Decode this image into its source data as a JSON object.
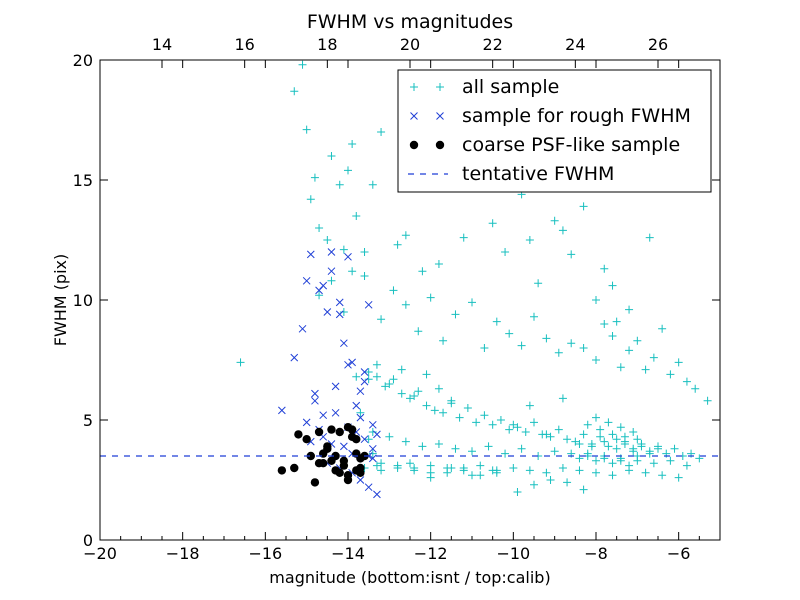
{
  "chart_data": {
    "type": "scatter",
    "title": "FWHM vs magnitudes",
    "xlabel": "magnitude (bottom:isnt / top:calib)",
    "ylabel": "FWHM (pix)",
    "xlim": [
      -20,
      -5
    ],
    "ylim": [
      0,
      20
    ],
    "top_xlim": [
      12.5,
      27.5
    ],
    "xticks": [
      -20,
      -18,
      -16,
      -14,
      -12,
      -10,
      -8,
      -6
    ],
    "xtick_labels": [
      "−20",
      "−18",
      "−16",
      "−14",
      "−12",
      "−10",
      "−8",
      "−6"
    ],
    "top_xticks": [
      14,
      16,
      18,
      20,
      22,
      24,
      26
    ],
    "top_xtick_labels": [
      "14",
      "16",
      "18",
      "20",
      "22",
      "24",
      "26"
    ],
    "yticks": [
      0,
      5,
      10,
      15,
      20
    ],
    "ytick_labels": [
      "0",
      "5",
      "10",
      "15",
      "20"
    ],
    "legend_position": "top-right",
    "colors": {
      "all": "#17bfbf",
      "rough": "#1f3fd6",
      "coarse": "#000000",
      "tentative": "#1f3fd6"
    },
    "series": [
      {
        "name": "all sample",
        "marker": "plus",
        "x": [
          -16.6,
          -15.3,
          -15.1,
          -15.0,
          -14.9,
          -14.8,
          -14.7,
          -14.5,
          -14.4,
          -14.2,
          -14.1,
          -14.0,
          -13.9,
          -13.8,
          -13.6,
          -13.4,
          -13.2,
          -12.8,
          -12.6,
          -12.2,
          -11.8,
          -11.2,
          -10.5,
          -10.2,
          -9.8,
          -9.6,
          -9.4,
          -9.0,
          -8.8,
          -8.6,
          -8.3,
          -8.0,
          -7.8,
          -7.6,
          -7.5,
          -7.2,
          -6.7,
          -14.7,
          -14.4,
          -14.1,
          -13.9,
          -13.6,
          -13.2,
          -12.9,
          -12.6,
          -12.3,
          -12.0,
          -11.7,
          -11.4,
          -11.0,
          -10.7,
          -10.4,
          -10.1,
          -9.8,
          -9.5,
          -9.2,
          -8.9,
          -8.6,
          -8.3,
          -8.0,
          -7.8,
          -7.6,
          -7.4,
          -7.2,
          -7.0,
          -6.8,
          -6.6,
          -6.4,
          -6.2,
          -6.0,
          -5.8,
          -5.6,
          -5.3,
          -13.5,
          -13.3,
          -13.1,
          -12.9,
          -12.7,
          -12.5,
          -12.3,
          -12.1,
          -11.9,
          -11.7,
          -11.5,
          -11.3,
          -11.1,
          -10.9,
          -10.7,
          -10.5,
          -10.3,
          -10.1,
          -9.9,
          -9.7,
          -9.5,
          -9.3,
          -9.1,
          -8.9,
          -8.7,
          -8.5,
          -8.3,
          -8.1,
          -7.9,
          -7.7,
          -7.5,
          -7.3,
          -7.1,
          -6.9,
          -6.7,
          -6.5,
          -6.3,
          -6.1,
          -5.9,
          -5.7,
          -5.5,
          -13.4,
          -13.0,
          -12.6,
          -12.2,
          -11.8,
          -11.4,
          -11.0,
          -10.6,
          -10.2,
          -9.8,
          -9.4,
          -9.0,
          -8.6,
          -8.2,
          -7.8,
          -7.4,
          -7.0,
          -6.6,
          -6.2,
          -5.8,
          -13.6,
          -13.2,
          -12.8,
          -12.4,
          -12.0,
          -11.6,
          -11.2,
          -10.8,
          -10.4,
          -10.0,
          -9.6,
          -9.2,
          -8.8,
          -8.4,
          -8.0,
          -7.6,
          -7.2,
          -6.8,
          -6.4,
          -6.0,
          -8.2,
          -8.0,
          -7.9,
          -7.7,
          -7.6,
          -7.4,
          -7.3,
          -7.1,
          -7.0,
          -6.9,
          -8.1,
          -7.8,
          -7.5,
          -7.3,
          -7.1,
          -6.9,
          -6.7,
          -6.5,
          -8.4,
          -8.2,
          -8.0,
          -7.8,
          -7.6,
          -7.4,
          -7.2,
          -7.0,
          -13.2,
          -12.8,
          -12.4,
          -12.0,
          -11.6,
          -11.2,
          -10.8,
          -10.4,
          -13.5,
          -13.3,
          -13.0,
          -12.7,
          -12.4,
          -12.1,
          -11.8,
          -11.5,
          -10.0,
          -9.6,
          -9.2,
          -8.8,
          -8.4,
          -9.9,
          -9.5,
          -9.1,
          -8.7,
          -8.3,
          -12.5,
          -12.0,
          -11.5,
          -11.0,
          -10.5,
          -13.8,
          -13.7,
          -13.5,
          -13.4,
          -13.3
        ],
        "y": [
          7.4,
          18.7,
          19.8,
          17.1,
          14.2,
          15.1,
          13.0,
          12.5,
          16.0,
          14.8,
          12.1,
          15.4,
          16.5,
          13.5,
          11.0,
          14.8,
          17.0,
          12.3,
          12.7,
          11.2,
          11.5,
          12.6,
          13.2,
          12.0,
          14.4,
          12.5,
          10.7,
          13.3,
          12.9,
          11.9,
          13.9,
          10.0,
          11.3,
          10.6,
          9.1,
          9.6,
          12.6,
          10.2,
          10.8,
          9.5,
          11.2,
          12.0,
          9.2,
          10.4,
          9.8,
          8.7,
          10.1,
          8.3,
          9.4,
          9.9,
          8.0,
          9.1,
          8.6,
          8.1,
          9.3,
          8.4,
          7.8,
          8.2,
          8.0,
          7.5,
          9.0,
          8.5,
          7.2,
          7.9,
          8.3,
          7.1,
          7.6,
          8.8,
          6.9,
          7.4,
          6.6,
          6.3,
          5.8,
          7.0,
          6.8,
          6.4,
          6.7,
          6.1,
          5.9,
          6.2,
          5.6,
          5.4,
          5.3,
          5.7,
          5.1,
          5.5,
          4.9,
          5.2,
          4.8,
          5.0,
          4.6,
          4.7,
          4.5,
          4.9,
          4.4,
          4.3,
          4.6,
          4.2,
          4.1,
          4.4,
          4.0,
          4.3,
          3.9,
          4.2,
          4.1,
          3.8,
          4.0,
          3.7,
          3.9,
          3.6,
          3.8,
          3.5,
          3.6,
          3.4,
          4.5,
          4.3,
          4.1,
          3.9,
          4.0,
          3.8,
          3.7,
          3.9,
          3.6,
          3.8,
          3.5,
          3.7,
          3.6,
          3.5,
          3.4,
          3.3,
          3.5,
          3.2,
          3.3,
          3.1,
          3.0,
          2.9,
          3.1,
          3.0,
          2.8,
          3.0,
          2.9,
          3.1,
          2.8,
          3.0,
          2.9,
          2.8,
          3.0,
          2.9,
          2.8,
          2.7,
          2.9,
          2.8,
          2.7,
          2.6,
          4.8,
          5.1,
          4.6,
          4.9,
          4.4,
          4.7,
          4.3,
          4.5,
          4.2,
          4.0,
          3.9,
          4.1,
          3.8,
          4.0,
          3.7,
          3.9,
          3.6,
          3.8,
          3.4,
          3.6,
          3.3,
          3.5,
          3.2,
          3.4,
          3.1,
          3.3,
          3.2,
          3.0,
          2.9,
          3.1,
          2.8,
          3.0,
          2.7,
          2.9,
          6.7,
          7.3,
          6.5,
          7.1,
          6.0,
          6.9,
          6.3,
          5.8,
          4.8,
          5.6,
          4.4,
          5.9,
          4.0,
          2.0,
          2.3,
          2.5,
          2.4,
          2.1,
          3.2,
          2.6,
          3.0,
          2.7,
          2.9,
          6.8,
          5.3,
          4.2,
          3.6,
          3.1
        ],
        "color": "#17bfbf"
      },
      {
        "name": "sample for rough FWHM",
        "marker": "x",
        "x": [
          -15.6,
          -15.3,
          -15.1,
          -15.0,
          -14.9,
          -14.8,
          -14.7,
          -14.6,
          -14.5,
          -14.4,
          -14.3,
          -14.2,
          -14.1,
          -14.0,
          -13.9,
          -13.8,
          -13.7,
          -13.6,
          -13.5,
          -13.4,
          -13.3,
          -15.0,
          -14.8,
          -14.6,
          -14.4,
          -14.2,
          -14.0,
          -13.8,
          -13.6,
          -13.4,
          -14.9,
          -14.6,
          -14.3,
          -14.0,
          -13.7,
          -13.5,
          -13.3,
          -14.7,
          -14.4,
          -14.1,
          -13.9,
          -13.6,
          -13.4,
          -14.5,
          -14.2,
          -13.9,
          -13.7,
          -13.5
        ],
        "y": [
          5.4,
          7.6,
          8.8,
          10.8,
          11.9,
          6.1,
          10.4,
          5.2,
          9.5,
          11.2,
          6.4,
          9.9,
          8.2,
          11.8,
          7.4,
          5.6,
          6.2,
          7.0,
          9.8,
          4.8,
          1.9,
          4.9,
          5.8,
          10.6,
          12.0,
          9.4,
          7.3,
          4.5,
          6.6,
          3.8,
          4.1,
          4.3,
          5.3,
          4.7,
          5.1,
          3.5,
          4.4,
          4.6,
          4.0,
          3.9,
          3.6,
          4.2,
          3.4,
          3.2,
          3.0,
          2.8,
          2.5,
          2.2
        ],
        "color": "#1f3fd6"
      },
      {
        "name": "coarse PSF-like sample",
        "marker": "circle",
        "x": [
          -15.6,
          -15.3,
          -15.2,
          -15.0,
          -14.8,
          -14.7,
          -14.6,
          -14.5,
          -14.4,
          -14.3,
          -14.2,
          -14.1,
          -14.0,
          -13.9,
          -13.8,
          -13.7,
          -14.9,
          -14.6,
          -14.3,
          -14.0,
          -13.8,
          -14.5,
          -14.2,
          -13.9,
          -13.7,
          -14.1,
          -13.8,
          -14.4,
          -14.0,
          -13.7,
          -13.6,
          -14.7
        ],
        "y": [
          2.9,
          3.0,
          4.4,
          4.2,
          2.4,
          4.5,
          3.2,
          3.8,
          4.6,
          2.9,
          4.5,
          3.1,
          4.7,
          4.3,
          2.9,
          3.4,
          3.5,
          3.6,
          3.5,
          2.7,
          4.2,
          3.9,
          2.8,
          4.6,
          3.0,
          3.3,
          3.6,
          3.3,
          2.5,
          2.8,
          3.5,
          3.2
        ],
        "color": "#000000"
      }
    ],
    "tentative_fwhm": {
      "name": "tentative FWHM",
      "value": 3.5,
      "color": "#1f3fd6"
    }
  }
}
